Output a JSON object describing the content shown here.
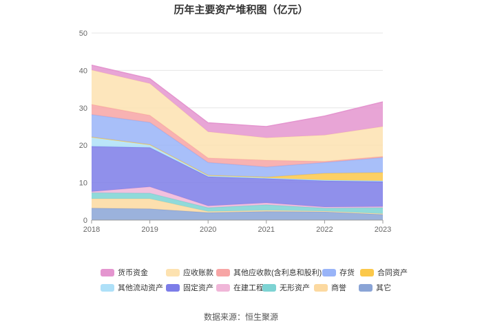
{
  "chart_data": {
    "type": "area",
    "stacked": true,
    "title": "历年主要资产堆积图（亿元）",
    "x": [
      "2018",
      "2019",
      "2020",
      "2021",
      "2022",
      "2023"
    ],
    "ylim": [
      0,
      50
    ],
    "yticks": [
      0,
      10,
      20,
      30,
      40,
      50
    ],
    "grid": true,
    "legend_position": "bottom",
    "series": [
      {
        "name": "其它",
        "color": "#8aa4d6",
        "values": [
          3.2,
          3.0,
          2.0,
          2.3,
          2.2,
          1.5
        ]
      },
      {
        "name": "商誉",
        "color": "#fcd9a0",
        "values": [
          2.5,
          2.7,
          0.3,
          0.3,
          0.2,
          0.2
        ]
      },
      {
        "name": "无形资产",
        "color": "#7dd3d3",
        "values": [
          1.6,
          1.5,
          1.0,
          1.5,
          0.8,
          1.6
        ]
      },
      {
        "name": "在建工程",
        "color": "#f0b6d8",
        "values": [
          0.3,
          1.7,
          0.5,
          0.5,
          0.3,
          0.3
        ]
      },
      {
        "name": "固定资产",
        "color": "#7c7de8",
        "values": [
          12.1,
          10.5,
          7.8,
          6.5,
          7.0,
          6.7
        ]
      },
      {
        "name": "其他流动资产",
        "color": "#aee0f8",
        "values": [
          2.5,
          0.8,
          0.4,
          0.2,
          0.2,
          0.2
        ]
      },
      {
        "name": "合同资产",
        "color": "#fbc84a",
        "values": [
          0,
          0,
          0,
          0.2,
          1.8,
          2.2
        ]
      },
      {
        "name": "存货",
        "color": "#99b4f8",
        "values": [
          6.0,
          5.9,
          3.4,
          2.7,
          2.9,
          4.0
        ]
      },
      {
        "name": "其他应收款(含利息和股利)",
        "color": "#f7a5a5",
        "values": [
          2.7,
          1.9,
          1.2,
          1.8,
          0.3,
          0.3
        ]
      },
      {
        "name": "应收账款",
        "color": "#fde2b0",
        "values": [
          9.2,
          8.5,
          7.0,
          6.0,
          7.0,
          8.0
        ]
      },
      {
        "name": "货币资金",
        "color": "#e495cf",
        "values": [
          1.3,
          1.3,
          2.4,
          3.0,
          5.1,
          6.6
        ]
      }
    ]
  },
  "legend_order": [
    "货币资金",
    "应收账款",
    "其他应收款(含利息和股利)",
    "存货",
    "合同资产",
    "其他流动资产",
    "固定资产",
    "在建工程",
    "无形资产",
    "商誉",
    "其它"
  ],
  "source": "数据来源：恒生聚源"
}
